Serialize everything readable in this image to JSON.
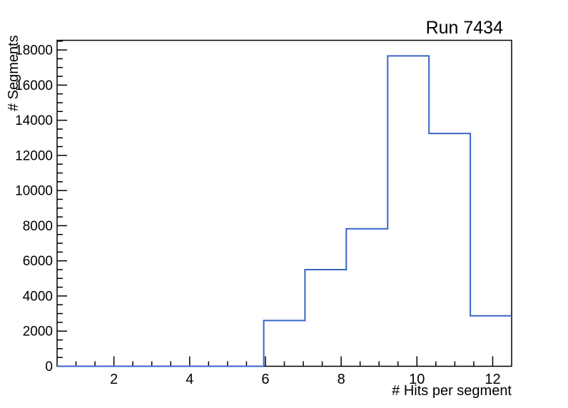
{
  "chart_data": {
    "type": "bar",
    "subtype": "step-histogram",
    "title": "Run 7434",
    "xlabel": "# Hits per segment",
    "ylabel": "# Segments",
    "xlim": [
      0.5,
      12.5
    ],
    "ylim": [
      0,
      18550
    ],
    "n_bins": 11,
    "bin_edges": [
      0.5,
      1.591,
      2.682,
      3.773,
      4.864,
      5.955,
      7.045,
      8.136,
      9.227,
      10.318,
      11.409,
      12.5
    ],
    "counts": [
      0,
      0,
      0,
      0,
      0,
      2600,
      5500,
      7820,
      17660,
      13250,
      2870
    ],
    "x_major_ticks": [
      2,
      4,
      6,
      8,
      10,
      12
    ],
    "x_tick_labels": [
      "2",
      "4",
      "6",
      "8",
      "10",
      "12"
    ],
    "x_minor_step": 0.5,
    "y_major_ticks": [
      0,
      2000,
      4000,
      6000,
      8000,
      10000,
      12000,
      14000,
      16000,
      18000
    ],
    "y_tick_labels": [
      "0",
      "2000",
      "4000",
      "6000",
      "8000",
      "10000",
      "12000",
      "14000",
      "16000",
      "18000"
    ],
    "y_minor_step": 500,
    "grid": false,
    "legend": "none",
    "line_color": "#3965c8",
    "axis_color": "#000000",
    "background_color": "#ffffff"
  }
}
